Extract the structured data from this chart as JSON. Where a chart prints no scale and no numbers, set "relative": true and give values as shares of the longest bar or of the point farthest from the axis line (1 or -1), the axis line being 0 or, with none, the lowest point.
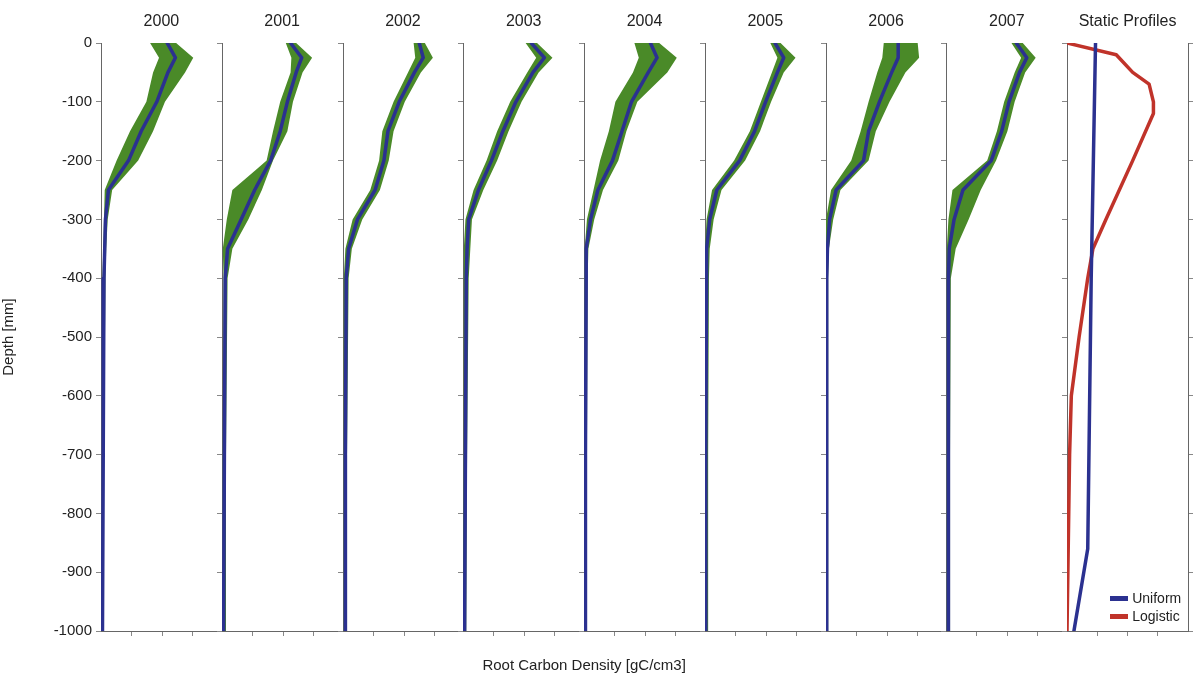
{
  "chart_data": [
    {
      "type": "line",
      "title": "2000",
      "ylabel": "Depth [mm]",
      "orientation": "horizontal",
      "relative": true,
      "marker": "none",
      "tick_labels": "y",
      "x": [
        0,
        -25,
        -50,
        -100,
        -150,
        -200,
        -250,
        -300,
        -350,
        -400,
        -700,
        -1000
      ],
      "ylim": [
        -1000,
        0
      ],
      "yticks": [
        0,
        -100,
        -200,
        -300,
        -400,
        -500,
        -600,
        -700,
        -800,
        -900,
        -1000
      ],
      "series": [
        {
          "color": "#2b3190",
          "values": [
            0.89,
            1,
            0.9,
            0.75,
            0.54,
            0.37,
            0.1,
            0.06,
            0.05,
            0.04,
            0.03,
            0.02
          ],
          "lower": [
            0.66,
            0.78,
            0.7,
            0.61,
            0.39,
            0.21,
            0.05,
            0.04,
            0.03,
            0.02,
            0.02,
            0.01
          ],
          "upper": [
            1.01,
            1.24,
            1.13,
            0.86,
            0.7,
            0.5,
            0.15,
            0.09,
            0.07,
            0.06,
            0.04,
            0.03
          ]
        }
      ]
    },
    {
      "type": "line",
      "title": "2001",
      "orientation": "horizontal",
      "relative": true,
      "marker": "none",
      "tick_labels": false,
      "x": [
        0,
        -25,
        -50,
        -100,
        -150,
        -200,
        -250,
        -300,
        -350,
        -400,
        -700,
        -1000
      ],
      "ylim": [
        -1000,
        0
      ],
      "yticks": [
        0,
        -100,
        -200,
        -300,
        -400,
        -500,
        -600,
        -700,
        -800,
        -900,
        -1000
      ],
      "series": [
        {
          "color": "#2b3190",
          "values": [
            0.86,
            1,
            0.93,
            0.82,
            0.73,
            0.61,
            0.41,
            0.24,
            0.07,
            0.04,
            0.03,
            0.02
          ],
          "lower": [
            0.8,
            0.87,
            0.86,
            0.73,
            0.64,
            0.56,
            0.13,
            0.06,
            0.01,
            0.02,
            0.01,
            0.01
          ],
          "upper": [
            0.93,
            1.13,
            1.01,
            0.89,
            0.82,
            0.64,
            0.5,
            0.33,
            0.13,
            0.07,
            0.05,
            0.05
          ]
        }
      ]
    },
    {
      "type": "line",
      "title": "2002",
      "orientation": "horizontal",
      "relative": true,
      "marker": "none",
      "tick_labels": false,
      "x": [
        0,
        -25,
        -50,
        -100,
        -150,
        -200,
        -250,
        -300,
        -350,
        -400,
        -700,
        -1000
      ],
      "ylim": [
        -1000,
        0
      ],
      "yticks": [
        0,
        -100,
        -200,
        -300,
        -400,
        -500,
        -600,
        -700,
        -800,
        -900,
        -1000
      ],
      "series": [
        {
          "color": "#2b3190",
          "values": [
            0.95,
            1,
            0.89,
            0.7,
            0.56,
            0.51,
            0.4,
            0.18,
            0.07,
            0.04,
            0.03,
            0.03
          ],
          "lower": [
            0.88,
            0.9,
            0.81,
            0.63,
            0.49,
            0.45,
            0.34,
            0.12,
            0.03,
            0.01,
            0.01,
            0.01
          ],
          "upper": [
            1.02,
            1.12,
            0.97,
            0.77,
            0.63,
            0.57,
            0.46,
            0.24,
            0.11,
            0.07,
            0.05,
            0.05
          ]
        }
      ]
    },
    {
      "type": "line",
      "title": "2003",
      "orientation": "horizontal",
      "relative": true,
      "marker": "none",
      "tick_labels": false,
      "x": [
        0,
        -25,
        -50,
        -100,
        -150,
        -200,
        -250,
        -300,
        -350,
        -400,
        -700,
        -1000
      ],
      "ylim": [
        -1000,
        0
      ],
      "yticks": [
        0,
        -100,
        -200,
        -300,
        -400,
        -500,
        -600,
        -700,
        -800,
        -900,
        -1000
      ],
      "series": [
        {
          "color": "#2b3190",
          "values": [
            0.84,
            1,
            0.86,
            0.65,
            0.49,
            0.35,
            0.19,
            0.07,
            0.05,
            0.04,
            0.03,
            0.02
          ],
          "lower": [
            0.77,
            0.9,
            0.79,
            0.58,
            0.42,
            0.29,
            0.13,
            0.03,
            0.01,
            0.01,
            0.01,
            0
          ],
          "upper": [
            0.91,
            1.1,
            0.93,
            0.72,
            0.56,
            0.42,
            0.25,
            0.11,
            0.09,
            0.07,
            0.05,
            0.04
          ]
        }
      ]
    },
    {
      "type": "line",
      "title": "2004",
      "xlabel": "Root Carbon Density [gC/cm3]",
      "orientation": "horizontal",
      "relative": true,
      "marker": "none",
      "tick_labels": false,
      "x": [
        0,
        -25,
        -50,
        -100,
        -150,
        -200,
        -250,
        -300,
        -350,
        -400,
        -700,
        -1000
      ],
      "ylim": [
        -1000,
        0
      ],
      "yticks": [
        0,
        -100,
        -200,
        -300,
        -400,
        -500,
        -600,
        -700,
        -800,
        -900,
        -1000
      ],
      "series": [
        {
          "color": "#2b3190",
          "values": [
            0.91,
            1,
            0.88,
            0.65,
            0.52,
            0.39,
            0.19,
            0.09,
            0.03,
            0.03,
            0.02,
            0.02
          ],
          "lower": [
            0.69,
            0.75,
            0.67,
            0.43,
            0.34,
            0.22,
            0.13,
            0.04,
            0.01,
            0.01,
            0.01,
            0.01
          ],
          "upper": [
            1.03,
            1.27,
            1.14,
            0.73,
            0.58,
            0.47,
            0.26,
            0.14,
            0.06,
            0.05,
            0.04,
            0.04
          ]
        }
      ]
    },
    {
      "type": "line",
      "title": "2005",
      "orientation": "horizontal",
      "relative": true,
      "marker": "none",
      "tick_labels": false,
      "x": [
        0,
        -25,
        -50,
        -100,
        -150,
        -200,
        -250,
        -300,
        -350,
        -400,
        -700,
        -1000
      ],
      "ylim": [
        -1000,
        0
      ],
      "yticks": [
        0,
        -100,
        -200,
        -300,
        -400,
        -500,
        -600,
        -700,
        -800,
        -900,
        -1000
      ],
      "series": [
        {
          "color": "#2b3190",
          "values": [
            0.89,
            1,
            0.92,
            0.77,
            0.63,
            0.44,
            0.15,
            0.06,
            0.02,
            0.02,
            0.01,
            0.01
          ],
          "lower": [
            0.83,
            0.92,
            0.85,
            0.71,
            0.57,
            0.37,
            0.09,
            0.02,
            0,
            0,
            0,
            0
          ],
          "upper": [
            0.96,
            1.15,
            1,
            0.84,
            0.7,
            0.51,
            0.21,
            0.11,
            0.06,
            0.05,
            0.04,
            0.04
          ]
        }
      ]
    },
    {
      "type": "line",
      "title": "2006",
      "orientation": "horizontal",
      "relative": true,
      "marker": "none",
      "tick_labels": false,
      "x": [
        0,
        -25,
        -50,
        -100,
        -150,
        -200,
        -250,
        -300,
        -350,
        -400,
        -700,
        -1000
      ],
      "ylim": [
        -1000,
        0
      ],
      "yticks": [
        0,
        -100,
        -200,
        -300,
        -400,
        -500,
        -600,
        -700,
        -800,
        -900,
        -1000
      ],
      "series": [
        {
          "color": "#2b3190",
          "values": [
            1,
            1,
            0.91,
            0.74,
            0.59,
            0.52,
            0.14,
            0.05,
            0.02,
            0.01,
            0.01,
            0.01
          ],
          "lower": [
            0.8,
            0.78,
            0.71,
            0.59,
            0.48,
            0.35,
            0.07,
            0,
            0,
            0,
            0,
            0
          ],
          "upper": [
            1.27,
            1.29,
            1.1,
            0.88,
            0.69,
            0.59,
            0.2,
            0.1,
            0.04,
            0.03,
            0.03,
            0.03
          ]
        }
      ]
    },
    {
      "type": "line",
      "title": "2007",
      "orientation": "horizontal",
      "relative": true,
      "marker": "none",
      "tick_labels": false,
      "x": [
        0,
        -25,
        -50,
        -100,
        -150,
        -200,
        -250,
        -300,
        -350,
        -400,
        -700,
        -1000
      ],
      "ylim": [
        -1000,
        0
      ],
      "yticks": [
        0,
        -100,
        -200,
        -300,
        -400,
        -500,
        -600,
        -700,
        -800,
        -900,
        -1000
      ],
      "series": [
        {
          "color": "#2b3190",
          "values": [
            0.87,
            1,
            0.91,
            0.78,
            0.69,
            0.56,
            0.21,
            0.1,
            0.04,
            0.03,
            0.03,
            0.03
          ],
          "lower": [
            0.81,
            0.93,
            0.85,
            0.72,
            0.63,
            0.51,
            0.08,
            0.03,
            0.01,
            0.01,
            0.01,
            0.01
          ],
          "upper": [
            0.95,
            1.11,
            0.98,
            0.85,
            0.76,
            0.62,
            0.43,
            0.28,
            0.12,
            0.06,
            0.05,
            0.05
          ]
        }
      ]
    },
    {
      "type": "line",
      "title": "Static Profiles",
      "orientation": "horizontal",
      "relative": true,
      "marker": "none",
      "tick_labels": false,
      "legend": "bottom right",
      "ylim": [
        -1000,
        0
      ],
      "yticks": [
        0,
        -100,
        -200,
        -300,
        -400,
        -500,
        -600,
        -700,
        -800,
        -900,
        -1000
      ],
      "series": [
        {
          "name": "Uniform",
          "color": "#2b3190",
          "x": [
            0,
            -400,
            -860,
            -1000
          ],
          "values": [
            0.33,
            0.28,
            0.24,
            0.08
          ]
        },
        {
          "name": "Logistic",
          "color": "#c0332a",
          "x": [
            0,
            -20,
            -50,
            -70,
            -100,
            -120,
            -200,
            -300,
            -350,
            -400,
            -500,
            -600,
            -700,
            -1000
          ],
          "values": [
            0,
            0.57,
            0.76,
            0.95,
            1,
            1,
            0.76,
            0.45,
            0.3,
            0.24,
            0.14,
            0.05,
            0.03,
            0
          ]
        }
      ]
    }
  ]
}
